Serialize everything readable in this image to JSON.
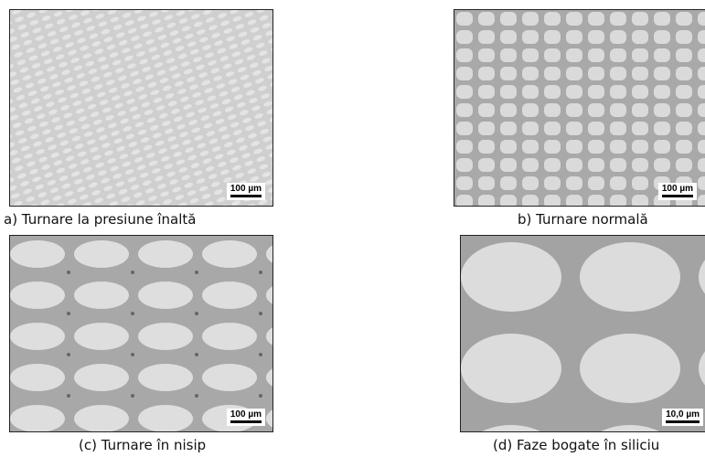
{
  "panels": [
    {
      "caption": "a) Turnare la presiune înaltă",
      "scale_label": "100 µm"
    },
    {
      "caption": "b) Turnare normală",
      "scale_label": "100 µm"
    },
    {
      "caption": "(c) Turnare în nisip",
      "scale_label": "100 µm"
    },
    {
      "caption": "(d) Faze bogate în siliciu",
      "scale_label": "10,0 µm"
    }
  ]
}
